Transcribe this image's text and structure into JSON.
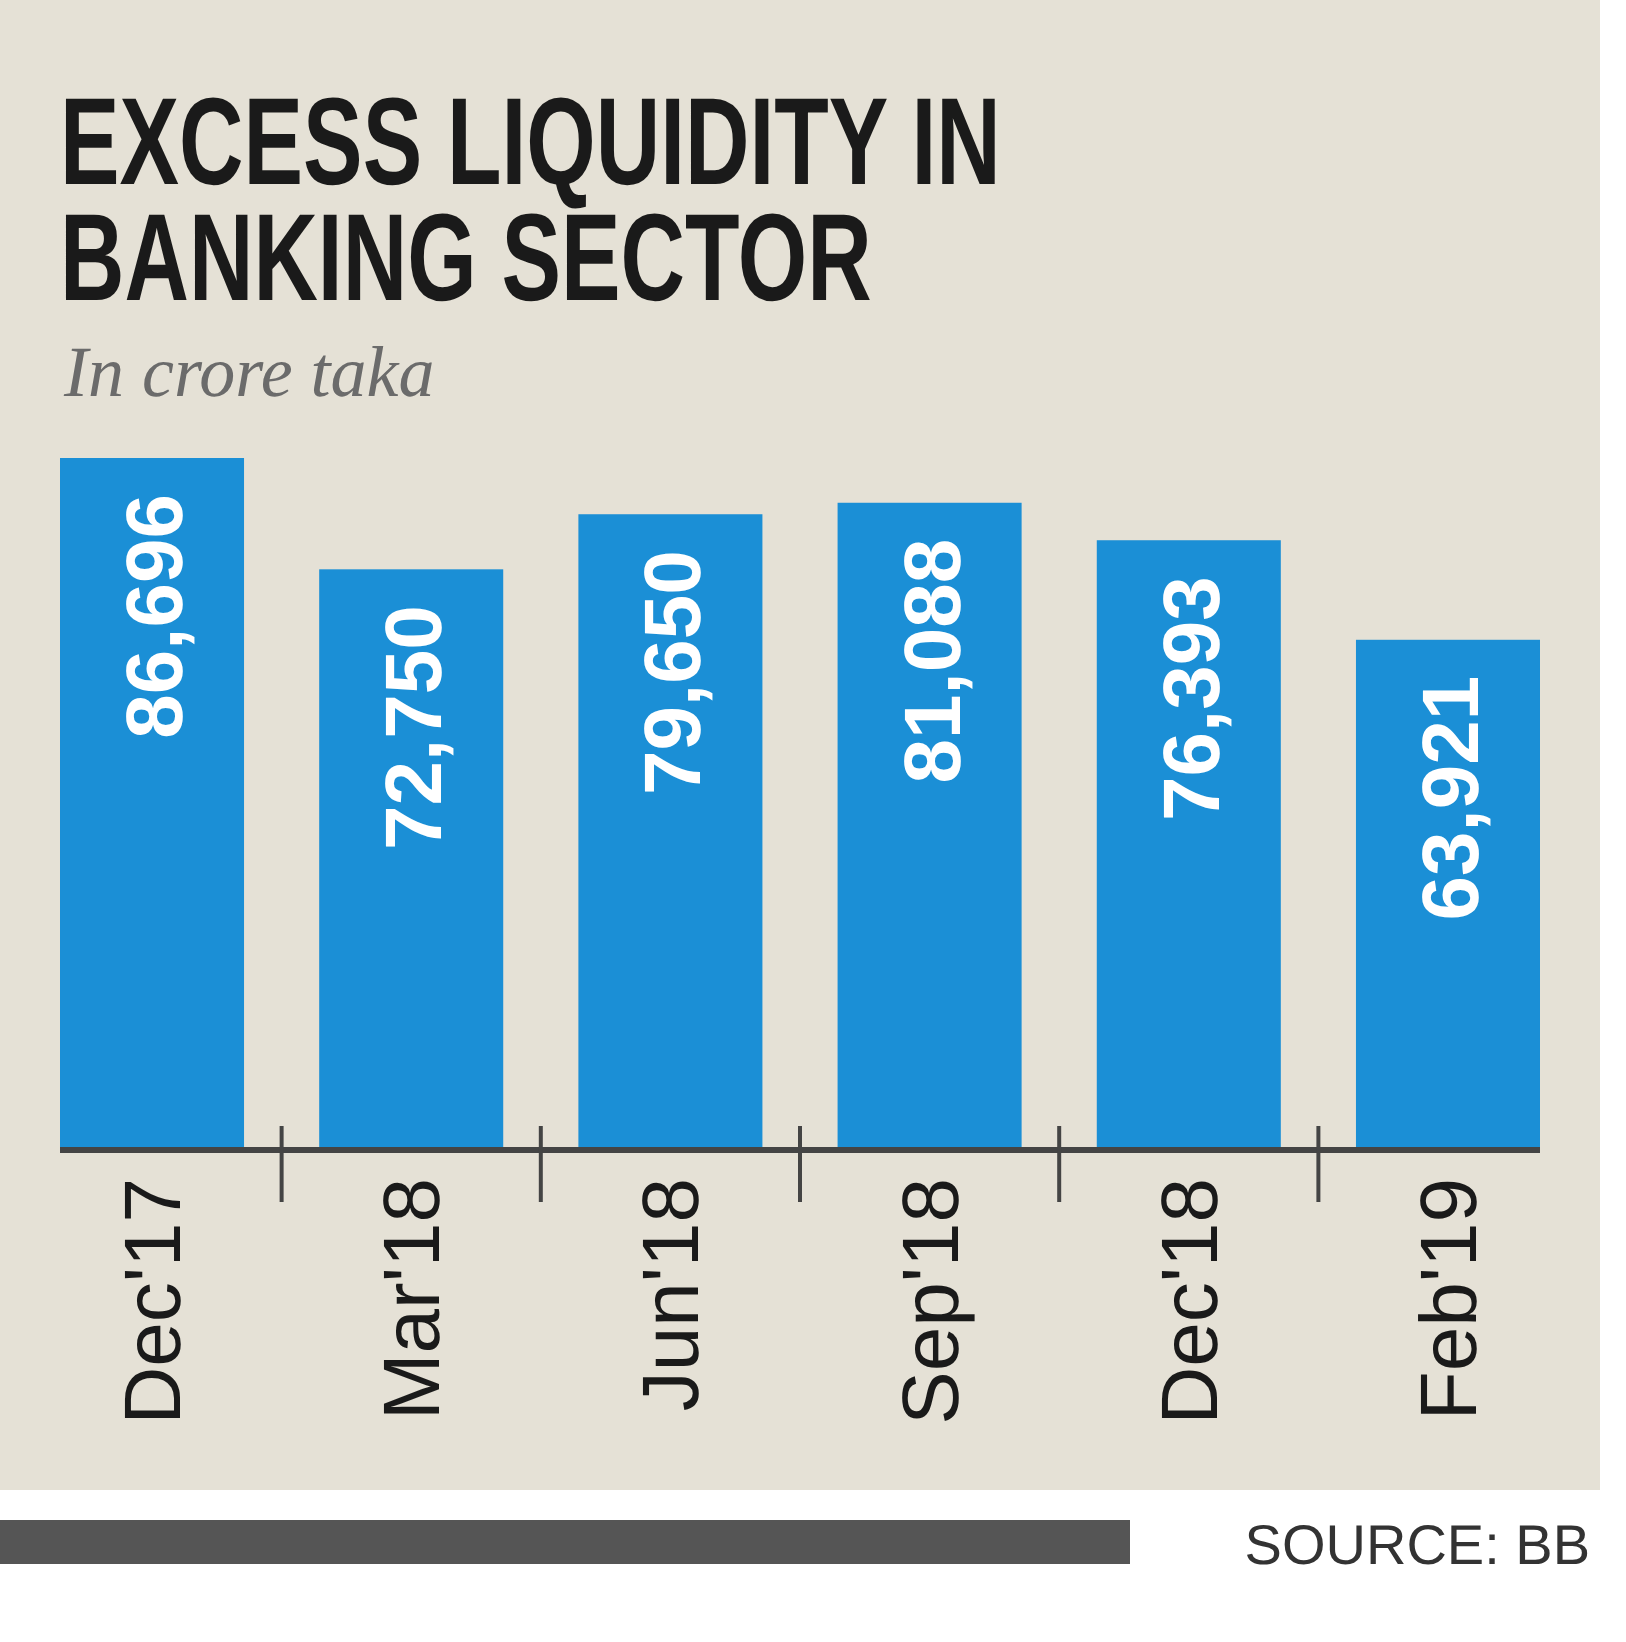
{
  "chart_data": {
    "type": "bar",
    "title": "EXCESS LIQUIDITY IN BANKING SECTOR",
    "subtitle": "In crore taka",
    "categories": [
      "Dec'17",
      "Mar'18",
      "Jun'18",
      "Sep'18",
      "Dec'18",
      "Feb'19"
    ],
    "values": [
      86696,
      72750,
      79650,
      81088,
      76393,
      63921
    ],
    "value_labels": [
      "86,696",
      "72,750",
      "79,650",
      "81,088",
      "76,393",
      "63,921"
    ],
    "color": "#1b8fd6",
    "annotations": [
      "SOURCE: BB"
    ]
  }
}
